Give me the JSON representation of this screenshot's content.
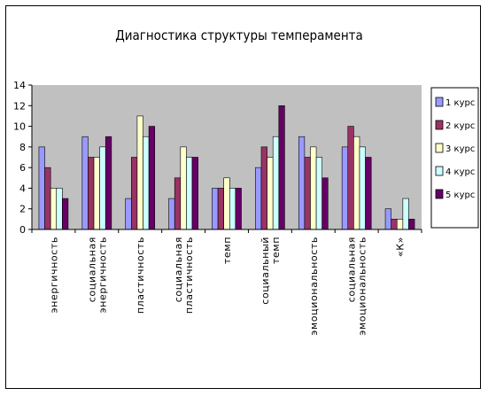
{
  "chart_data": {
    "type": "bar",
    "title": "Диагностика структуры темперамента",
    "xlabel": "",
    "ylabel": "",
    "ylim": [
      0,
      14
    ],
    "yticks": [
      0,
      2,
      4,
      6,
      8,
      10,
      12,
      14
    ],
    "grid": false,
    "legend_position": "right",
    "categories": [
      "энергичность",
      "социальная энергичность",
      "пластичность",
      "социальная пластичность",
      "темп",
      "социальный темп",
      "эмоциональность",
      "социальная эмоциональность",
      "«К»"
    ],
    "series": [
      {
        "name": "1 курс",
        "color": "#9999ff",
        "values": [
          8,
          9,
          3,
          3,
          4,
          6,
          9,
          8,
          2
        ]
      },
      {
        "name": "2 курс",
        "color": "#993366",
        "values": [
          6,
          7,
          7,
          5,
          4,
          8,
          7,
          10,
          1
        ]
      },
      {
        "name": "3 курс",
        "color": "#ffffcc",
        "values": [
          4,
          7,
          11,
          8,
          5,
          7,
          8,
          9,
          1
        ]
      },
      {
        "name": "4 курс",
        "color": "#ccffff",
        "values": [
          4,
          8,
          9,
          7,
          4,
          9,
          7,
          8,
          3
        ]
      },
      {
        "name": "5 курс",
        "color": "#660066",
        "values": [
          3,
          9,
          10,
          7,
          4,
          12,
          5,
          7,
          1
        ]
      }
    ],
    "plot_background": "#c0c0c0"
  }
}
